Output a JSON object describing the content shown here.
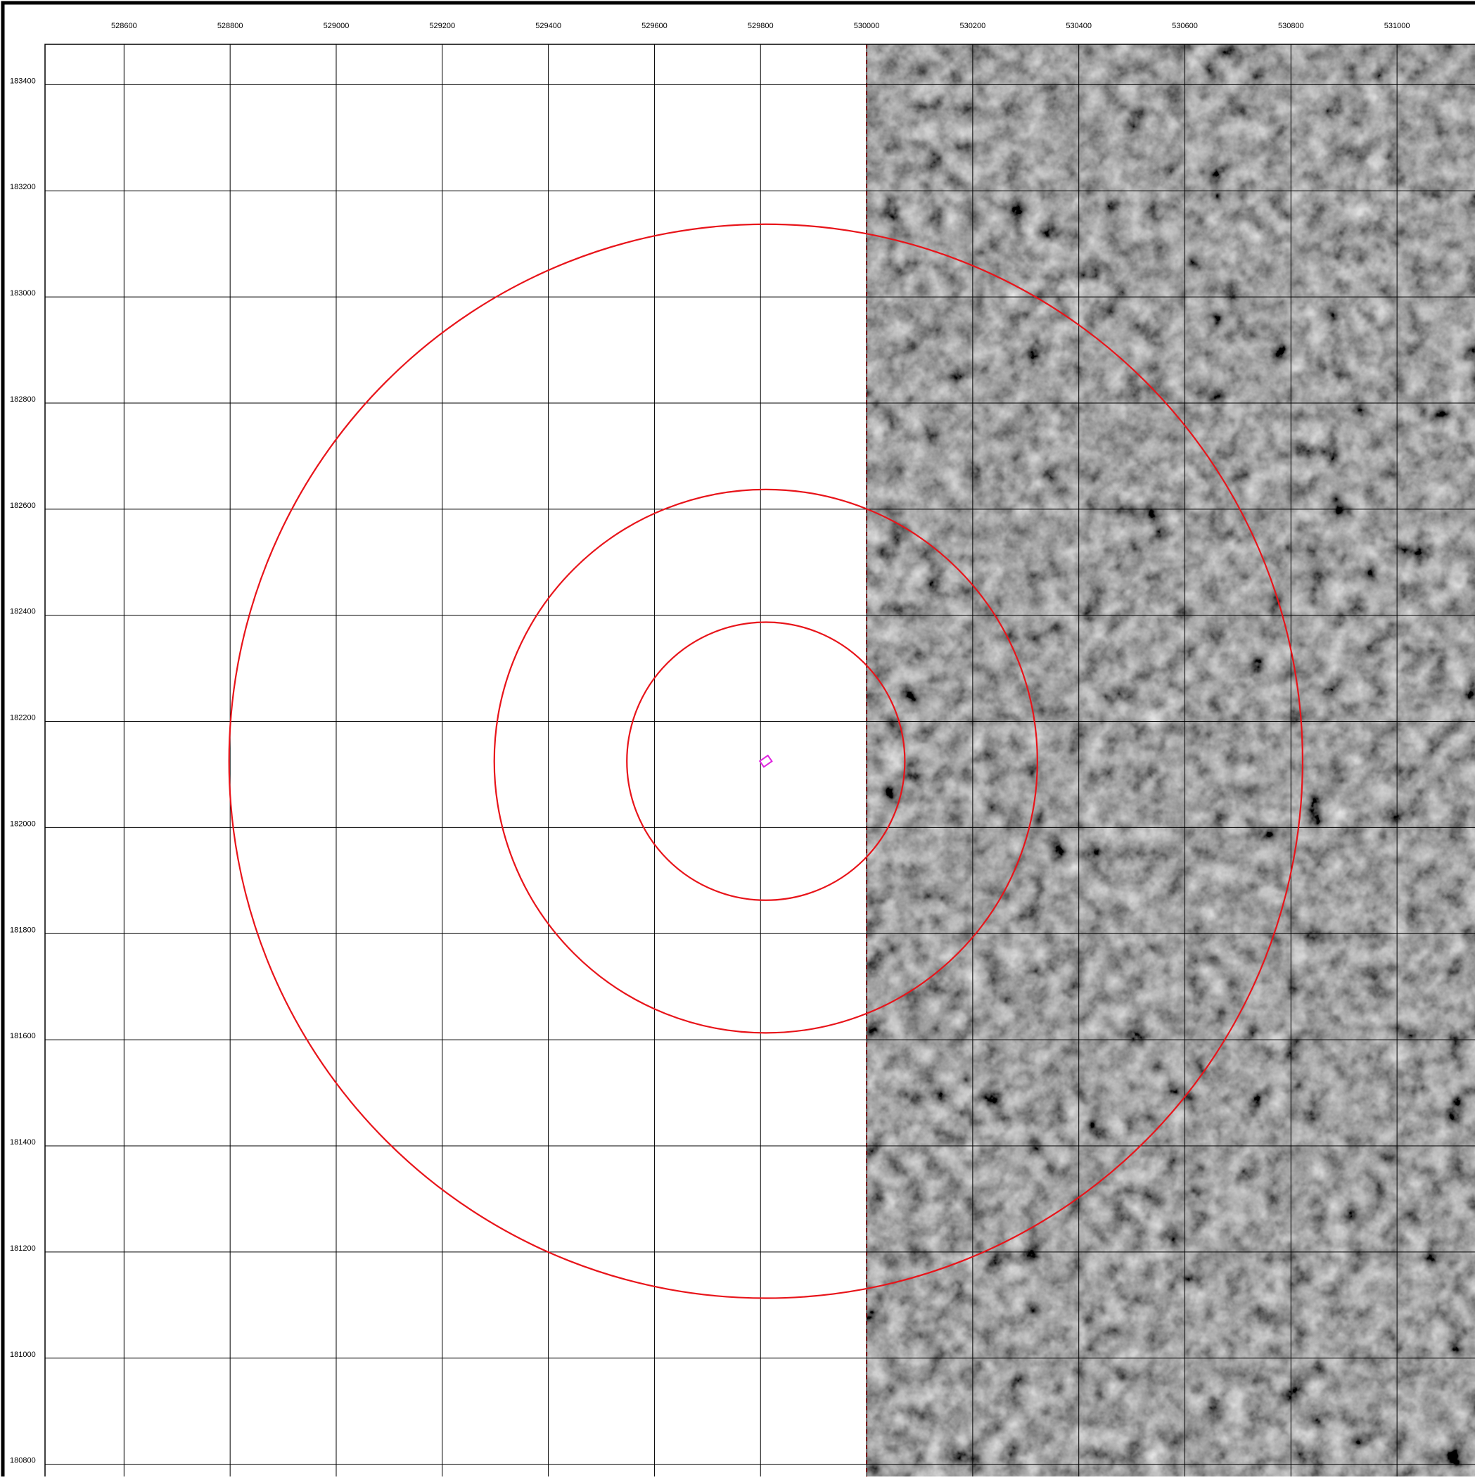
{
  "map": {
    "xlim": [
      528451,
      531147
    ],
    "ylim": [
      180777,
      183476
    ],
    "xticks": [
      528600,
      528800,
      529000,
      529200,
      529400,
      529600,
      529800,
      530000,
      530200,
      530400,
      530600,
      530800,
      531000
    ],
    "yticks": [
      180800,
      181000,
      181200,
      181400,
      181600,
      181800,
      182000,
      182200,
      182400,
      182600,
      182800,
      183000,
      183200,
      183400
    ],
    "center": [
      529810,
      182125
    ],
    "buffers": [
      262,
      512,
      1012
    ],
    "buffer_color": "#e8141a",
    "site_color": "#e020e0",
    "image_xmin": 530000
  }
}
